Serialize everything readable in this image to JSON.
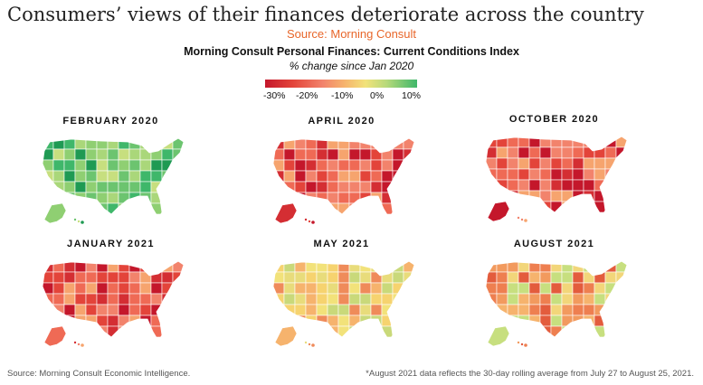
{
  "headline": "Consumers’ views of their finances deteriorate across the country",
  "source_label": "Source: Morning Consult",
  "chart_title": "Morning Consult Personal Finances: Current Conditions Index",
  "chart_subtitle": "% change since Jan 2020",
  "legend": {
    "ticks": [
      "-30%",
      "-20%",
      "-10%",
      "0%",
      "10%"
    ],
    "range": [
      -30,
      10
    ],
    "colors": [
      "#c4172b",
      "#e3443a",
      "#f2836c",
      "#f6b36d",
      "#f2e27a",
      "#b6d97a",
      "#3fb76a"
    ]
  },
  "maps": [
    {
      "label": "FEBRUARY 2020",
      "tone": "green"
    },
    {
      "label": "APRIL 2020",
      "tone": "red"
    },
    {
      "label": "OCTOBER 2020",
      "tone": "red"
    },
    {
      "label": "JANUARY 2021",
      "tone": "red"
    },
    {
      "label": "MAY 2021",
      "tone": "yellow"
    },
    {
      "label": "AUGUST 2021",
      "tone": "orange"
    }
  ],
  "palettes": {
    "green": [
      "#3fb76a",
      "#6cc46f",
      "#8fcf72",
      "#aad77a",
      "#c7df7f",
      "#1f9a53"
    ],
    "red": [
      "#e3443a",
      "#d42e33",
      "#ef6a55",
      "#f2836c",
      "#f6a46e",
      "#c4172b"
    ],
    "yellow": [
      "#f2e27a",
      "#f6d36f",
      "#e8dc7b",
      "#f6b36d",
      "#c9d97a",
      "#ef8b5a"
    ],
    "orange": [
      "#f29a5e",
      "#ee7f50",
      "#f6b36d",
      "#e35c3d",
      "#f2d67a",
      "#c7df7f"
    ]
  },
  "footer": {
    "left": "Source: Morning Consult Economic Intelligence.",
    "right": "*August 2021 data reflects the 30-day rolling average from July 27 to August 25, 2021."
  }
}
